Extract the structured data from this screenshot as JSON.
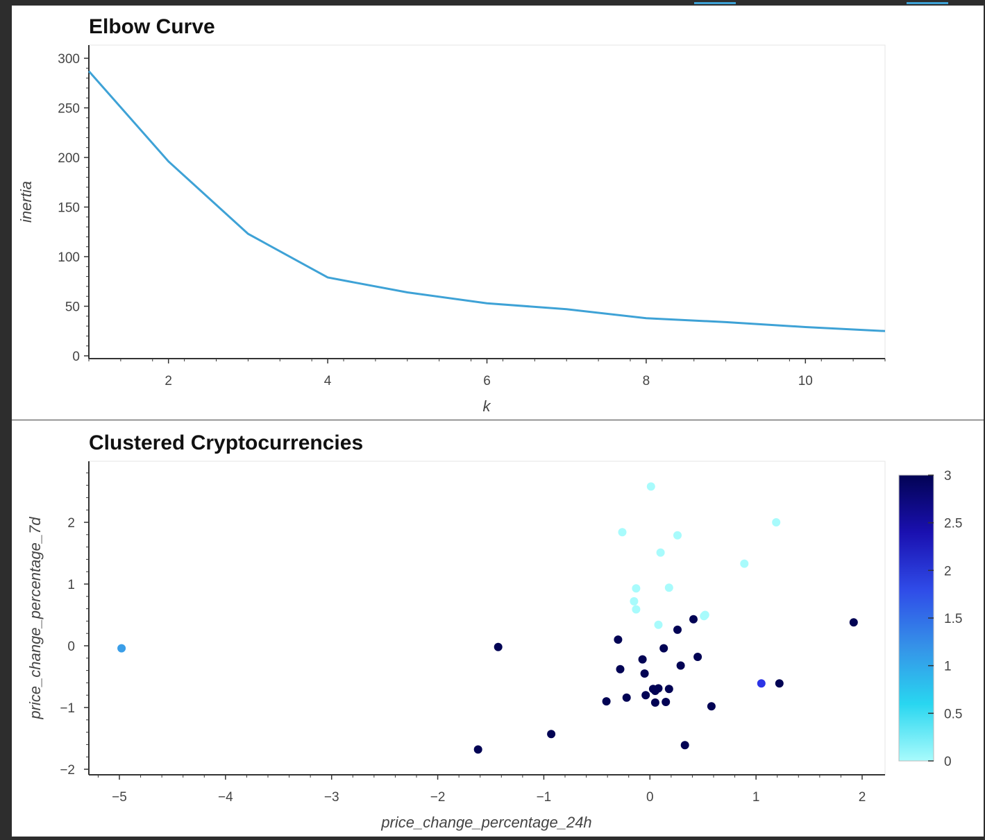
{
  "chart_data": [
    {
      "type": "line",
      "title": "Elbow Curve",
      "xlabel": "k",
      "ylabel": "inertia",
      "x": [
        1,
        2,
        3,
        4,
        5,
        6,
        7,
        8,
        9,
        10,
        11
      ],
      "y": [
        287,
        196,
        123,
        79,
        64,
        53,
        47,
        38,
        34,
        29,
        25
      ],
      "xlim": [
        1,
        11
      ],
      "ylim": [
        0,
        300
      ],
      "x_ticks": [
        "2",
        "4",
        "6",
        "8",
        "10"
      ],
      "y_ticks": [
        "0",
        "50",
        "100",
        "150",
        "200",
        "250",
        "300"
      ],
      "line_color": "#3ea2d6",
      "grid": false
    },
    {
      "type": "scatter",
      "title": "Clustered Cryptocurrencies",
      "xlabel": "price_change_percentage_24h",
      "ylabel": "price_change_percentage_7d",
      "xlim": [
        -5.2,
        2.2
      ],
      "ylim": [
        -2,
        3
      ],
      "x_ticks": [
        "−5",
        "−4",
        "−3",
        "−2",
        "−1",
        "0",
        "1",
        "2"
      ],
      "y_ticks": [
        "−2",
        "−1",
        "0",
        "1",
        "2"
      ],
      "colorbar": {
        "range": [
          0,
          3
        ],
        "ticks": [
          "0",
          "0.5",
          "1",
          "1.5",
          "2",
          "2.5",
          "3"
        ],
        "colors": [
          "#a8fbfc",
          "#29d6f0",
          "#3592e8",
          "#2f4be8",
          "#1a10b0",
          "#020354"
        ]
      },
      "points": [
        {
          "x": 0.01,
          "y": 2.58,
          "cluster": 0
        },
        {
          "x": 1.19,
          "y": 2.0,
          "cluster": 0
        },
        {
          "x": -0.26,
          "y": 1.84,
          "cluster": 0
        },
        {
          "x": 0.26,
          "y": 1.79,
          "cluster": 0
        },
        {
          "x": 0.1,
          "y": 1.51,
          "cluster": 0
        },
        {
          "x": 0.89,
          "y": 1.33,
          "cluster": 0
        },
        {
          "x": -0.13,
          "y": 0.93,
          "cluster": 0
        },
        {
          "x": 0.18,
          "y": 0.94,
          "cluster": 0
        },
        {
          "x": -0.15,
          "y": 0.72,
          "cluster": 0
        },
        {
          "x": -0.13,
          "y": 0.59,
          "cluster": 0
        },
        {
          "x": 0.51,
          "y": 0.48,
          "cluster": 0
        },
        {
          "x": 0.52,
          "y": 0.5,
          "cluster": 0
        },
        {
          "x": 0.08,
          "y": 0.34,
          "cluster": 0
        },
        {
          "x": -4.98,
          "y": -0.04,
          "cluster": 1
        },
        {
          "x": 1.05,
          "y": -0.61,
          "cluster": 2
        },
        {
          "x": 1.92,
          "y": 0.38,
          "cluster": 3
        },
        {
          "x": 0.41,
          "y": 0.43,
          "cluster": 3
        },
        {
          "x": -0.3,
          "y": 0.1,
          "cluster": 3
        },
        {
          "x": 0.26,
          "y": 0.26,
          "cluster": 3
        },
        {
          "x": -1.43,
          "y": -0.02,
          "cluster": 3
        },
        {
          "x": 0.13,
          "y": -0.04,
          "cluster": 3
        },
        {
          "x": 0.45,
          "y": -0.18,
          "cluster": 3
        },
        {
          "x": -0.07,
          "y": -0.22,
          "cluster": 3
        },
        {
          "x": -0.28,
          "y": -0.38,
          "cluster": 3
        },
        {
          "x": 0.29,
          "y": -0.32,
          "cluster": 3
        },
        {
          "x": -0.05,
          "y": -0.45,
          "cluster": 3
        },
        {
          "x": 0.03,
          "y": -0.7,
          "cluster": 3
        },
        {
          "x": 0.08,
          "y": -0.69,
          "cluster": 3
        },
        {
          "x": 0.18,
          "y": -0.7,
          "cluster": 3
        },
        {
          "x": 0.05,
          "y": -0.73,
          "cluster": 3
        },
        {
          "x": -0.04,
          "y": -0.8,
          "cluster": 3
        },
        {
          "x": -0.22,
          "y": -0.84,
          "cluster": 3
        },
        {
          "x": -0.41,
          "y": -0.9,
          "cluster": 3
        },
        {
          "x": 0.05,
          "y": -0.92,
          "cluster": 3
        },
        {
          "x": 0.15,
          "y": -0.91,
          "cluster": 3
        },
        {
          "x": 0.58,
          "y": -0.98,
          "cluster": 3
        },
        {
          "x": 1.22,
          "y": -0.61,
          "cluster": 3
        },
        {
          "x": -0.93,
          "y": -1.43,
          "cluster": 3
        },
        {
          "x": -1.62,
          "y": -1.68,
          "cluster": 3
        },
        {
          "x": 0.33,
          "y": -1.61,
          "cluster": 3
        }
      ]
    }
  ]
}
